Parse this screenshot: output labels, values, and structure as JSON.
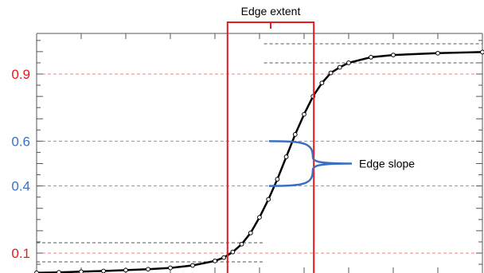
{
  "chart_data": {
    "type": "line",
    "title": "",
    "xlabel": "",
    "ylabel": "",
    "xlim": [
      0,
      10
    ],
    "ylim": [
      0,
      1.1
    ],
    "y_ticks_labeled": [
      {
        "value": 0.1,
        "label": "0.1",
        "color": "#e8191f"
      },
      {
        "value": 0.4,
        "label": "0.4",
        "color": "#3a6fc4"
      },
      {
        "value": 0.6,
        "label": "0.6",
        "color": "#3a6fc4"
      },
      {
        "value": 0.9,
        "label": "0.9",
        "color": "#e8191f"
      }
    ],
    "reference_lines": [
      {
        "value": 0.1,
        "color": "#f08080",
        "style": "dashed"
      },
      {
        "value": 0.4,
        "color": "#8a8ae6",
        "style": "dashed"
      },
      {
        "value": 0.6,
        "color": "#8a8ae6",
        "style": "dashed"
      },
      {
        "value": 0.9,
        "color": "#f08080",
        "style": "dashed"
      }
    ],
    "series": [
      {
        "points": [
          {
            "x": 0.0,
            "y": 0.012
          },
          {
            "x": 0.5,
            "y": 0.014
          },
          {
            "x": 1.0,
            "y": 0.017
          },
          {
            "x": 1.5,
            "y": 0.02
          },
          {
            "x": 2.0,
            "y": 0.024
          },
          {
            "x": 2.5,
            "y": 0.028
          },
          {
            "x": 3.0,
            "y": 0.034
          },
          {
            "x": 3.5,
            "y": 0.045
          },
          {
            "x": 4.0,
            "y": 0.065
          },
          {
            "x": 4.2,
            "y": 0.08
          },
          {
            "x": 4.4,
            "y": 0.105
          },
          {
            "x": 4.6,
            "y": 0.14
          },
          {
            "x": 4.8,
            "y": 0.19
          },
          {
            "x": 5.0,
            "y": 0.26
          },
          {
            "x": 5.2,
            "y": 0.34
          },
          {
            "x": 5.4,
            "y": 0.43
          },
          {
            "x": 5.6,
            "y": 0.53
          },
          {
            "x": 5.8,
            "y": 0.63
          },
          {
            "x": 6.0,
            "y": 0.72
          },
          {
            "x": 6.2,
            "y": 0.8
          },
          {
            "x": 6.4,
            "y": 0.86
          },
          {
            "x": 6.6,
            "y": 0.905
          },
          {
            "x": 6.8,
            "y": 0.93
          },
          {
            "x": 7.0,
            "y": 0.95
          },
          {
            "x": 7.5,
            "y": 0.975
          },
          {
            "x": 8.0,
            "y": 0.985
          },
          {
            "x": 9.0,
            "y": 0.993
          },
          {
            "x": 10.0,
            "y": 0.998
          }
        ],
        "color": "#000000"
      }
    ],
    "annotations": {
      "edge_extent": {
        "label": "Edge extent",
        "x_start": 4.3,
        "x_end": 6.2,
        "color": "#e8191f"
      },
      "edge_slope": {
        "label": "Edge slope",
        "y_low": 0.4,
        "y_high": 0.6,
        "color": "#3a6fc4"
      }
    },
    "grid": false
  }
}
